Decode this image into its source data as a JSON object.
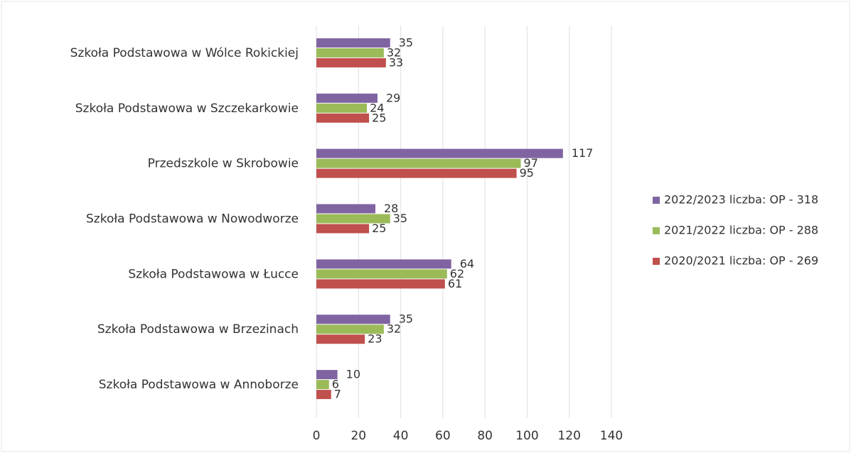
{
  "chart_data": {
    "type": "bar",
    "orientation": "horizontal",
    "categories": [
      "Szkoła Podstawowa w Wólce Rokickiej",
      "Szkoła Podstawowa w Szczekarkowie",
      "Przedszkole w Skrobowie",
      "Szkoła Podstawowa w Nowodworze",
      "Szkoła Podstawowa w Łucce",
      "Szkoła Podstawowa w Brzezinach",
      "Szkoła Podstawowa w Annoborze"
    ],
    "series": [
      {
        "name": "2022/2023 liczba: OP - 318",
        "color": "#8064a2",
        "values": [
          35,
          29,
          117,
          28,
          64,
          35,
          10
        ]
      },
      {
        "name": "2021/2022 liczba: OP - 288",
        "color": "#9bbb59",
        "values": [
          32,
          24,
          97,
          35,
          62,
          32,
          6
        ]
      },
      {
        "name": "2020/2021 liczba: OP - 269",
        "color": "#c0504d",
        "values": [
          33,
          25,
          95,
          25,
          61,
          23,
          7
        ]
      }
    ],
    "xlim": [
      0,
      140
    ],
    "xticks": [
      0,
      20,
      40,
      60,
      80,
      100,
      120,
      140
    ],
    "grid": true,
    "legend": "right"
  }
}
